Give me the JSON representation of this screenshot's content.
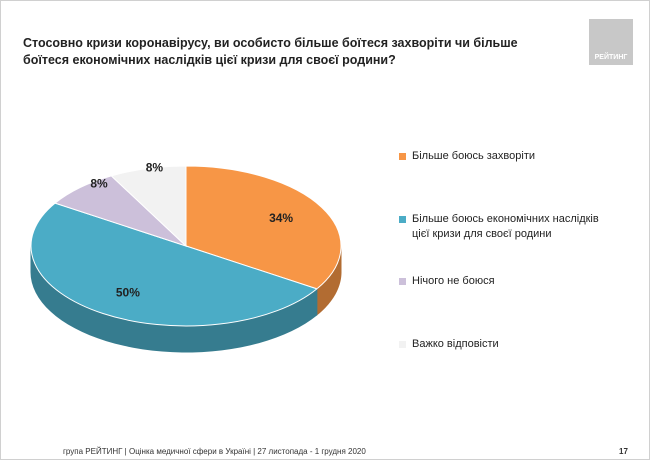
{
  "chart_data": {
    "type": "pie",
    "title": "Стосовно кризи коронавірусу, ви особисто більше боїтеся захворіти чи більше боїтеся економічних наслідків цієї кризи для своєї родини?",
    "categories": [
      "Більше боюсь захворіти",
      "Більше боюсь економічних наслідків цієї кризи для своєї родини",
      "Нічого не боюся",
      "Важко відповісти"
    ],
    "values": [
      34,
      50,
      8,
      8
    ],
    "value_labels": [
      "34%",
      "50%",
      "8%",
      "8%"
    ],
    "colors": [
      "#f79646",
      "#4bacc6",
      "#ccc0da",
      "#f2f2f2"
    ],
    "legend": "right"
  },
  "logo": "РЕЙТИНГ",
  "footer": "група РЕЙТИНГ  |  Оцінка медичної сфери в Україні  |  27 листопада - 1 грудня 2020",
  "page_number": 17
}
